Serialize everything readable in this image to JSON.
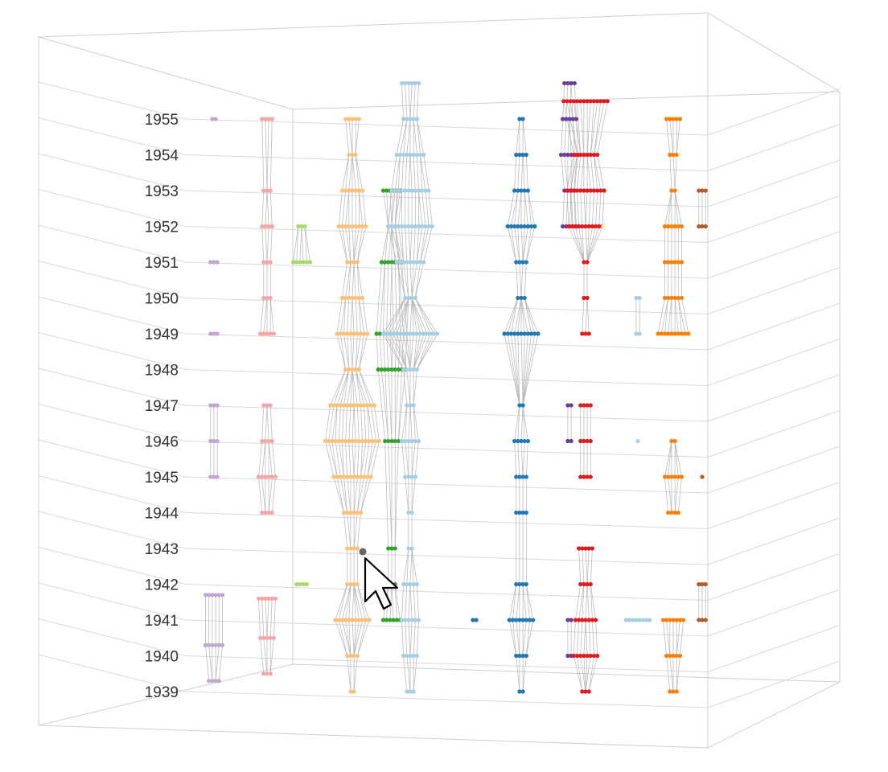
{
  "chart_data": {
    "type": "scatter",
    "title": "",
    "xlabel": "",
    "ylabel": "",
    "y_ticks": [
      "1939",
      "1940",
      "1941",
      "1942",
      "1943",
      "1944",
      "1945",
      "1946",
      "1947",
      "1948",
      "1949",
      "1950",
      "1951",
      "1952",
      "1953",
      "1954",
      "1955"
    ],
    "ylim": [
      1939,
      1955
    ],
    "grid": true,
    "colors": {
      "light_purple": "#c2a5cf",
      "light_pink": "#f4a6a6",
      "light_green": "#a6d96a",
      "light_orange": "#fdc07a",
      "green": "#33a02c",
      "light_blue": "#a6cee3",
      "blue": "#1f78b4",
      "red": "#e31a1c",
      "purple": "#6a3d9a",
      "orange": "#ff7f00",
      "brown": "#b15928",
      "yellow": "#ffff99",
      "hover": "#666666"
    },
    "clusters": [
      {
        "color": "light_purple",
        "years": [
          1955,
          1951,
          1949
        ],
        "sizes": [
          2,
          3,
          3
        ],
        "column": 1,
        "connected": false
      },
      {
        "color": "light_purple",
        "years": [
          1941.7,
          1940.3,
          1939.3
        ],
        "sizes": [
          6,
          6,
          4
        ],
        "column": 1,
        "connected": true
      },
      {
        "color": "light_purple",
        "years": [
          1947,
          1946,
          1945
        ],
        "sizes": [
          3,
          3,
          3
        ],
        "column": 1,
        "connected": true
      },
      {
        "color": "light_pink",
        "years": [
          1955,
          1953,
          1952,
          1951,
          1950,
          1949
        ],
        "sizes": [
          4,
          3,
          4,
          3,
          3,
          5
        ],
        "column": 2,
        "connected": true
      },
      {
        "color": "light_pink",
        "years": [
          1947,
          1946,
          1945,
          1944
        ],
        "sizes": [
          3,
          4,
          6,
          4
        ],
        "column": 2,
        "connected": true
      },
      {
        "color": "light_pink",
        "years": [
          1941.6,
          1940.5,
          1939.5
        ],
        "sizes": [
          6,
          5,
          3
        ],
        "column": 2,
        "connected": true
      },
      {
        "color": "light_green",
        "years": [
          1952,
          1951
        ],
        "sizes": [
          3,
          6
        ],
        "column": 3,
        "connected": true
      },
      {
        "color": "light_green",
        "years": [
          1942
        ],
        "sizes": [
          4
        ],
        "column": 3,
        "connected": false
      },
      {
        "color": "light_orange",
        "years": [
          1955,
          1954,
          1953,
          1952,
          1951,
          1950,
          1949,
          1948,
          1947,
          1946,
          1945,
          1944,
          1943,
          1942,
          1941,
          1940,
          1939
        ],
        "sizes": [
          5,
          3,
          7,
          9,
          4,
          7,
          10,
          5,
          14,
          17,
          12,
          6,
          4,
          4,
          11,
          4,
          2
        ],
        "column": 4,
        "connected": true
      },
      {
        "color": "green",
        "years": [
          1953,
          1952,
          1951,
          1949,
          1948,
          1946,
          1943,
          1942,
          1941
        ],
        "sizes": [
          6,
          3,
          7,
          10,
          9,
          5,
          3,
          3,
          6
        ],
        "column": 5,
        "connected": true
      },
      {
        "color": "light_blue",
        "years": [
          1956,
          1955,
          1954,
          1953,
          1952,
          1951,
          1950,
          1949,
          1948,
          1947,
          1946,
          1945,
          1944,
          1943,
          1942,
          1941,
          1940,
          1939
        ],
        "sizes": [
          6,
          5,
          9,
          12,
          14,
          9,
          4,
          17,
          5,
          3,
          6,
          4,
          2,
          2,
          5,
          6,
          5,
          3
        ],
        "column": 6,
        "connected": true
      },
      {
        "color": "blue",
        "years": [
          1955,
          1954,
          1953,
          1952,
          1951,
          1950,
          1949,
          1947,
          1946,
          1945,
          1944,
          1942,
          1941,
          1940,
          1939
        ],
        "sizes": [
          2,
          4,
          5,
          9,
          4,
          3,
          11,
          2,
          5,
          4,
          4,
          4,
          8,
          4,
          2
        ],
        "column": 7,
        "connected": true
      },
      {
        "color": "blue",
        "years": [
          1941
        ],
        "sizes": [
          2
        ],
        "column": 6.5,
        "connected": false
      },
      {
        "color": "purple",
        "years": [
          1956,
          1955,
          1954,
          1953,
          1952
        ],
        "sizes": [
          4,
          5,
          6,
          4,
          5
        ],
        "column": 8,
        "connected": true
      },
      {
        "color": "purple",
        "years": [
          1947,
          1946
        ],
        "sizes": [
          2,
          2
        ],
        "column": 8,
        "connected": true
      },
      {
        "color": "purple",
        "years": [
          1941,
          1940
        ],
        "sizes": [
          2,
          2
        ],
        "column": 8,
        "connected": true
      },
      {
        "color": "red",
        "years": [
          1955.5,
          1954,
          1953,
          1952,
          1951,
          1950,
          1949
        ],
        "sizes": [
          14,
          8,
          12,
          11,
          2,
          2,
          3
        ],
        "column": 8.5,
        "connected": true
      },
      {
        "color": "red",
        "years": [
          1947,
          1946,
          1945
        ],
        "sizes": [
          4,
          4,
          4
        ],
        "column": 8.5,
        "connected": true
      },
      {
        "color": "red",
        "years": [
          1943,
          1942,
          1941,
          1940,
          1939
        ],
        "sizes": [
          5,
          4,
          7,
          8,
          3
        ],
        "column": 8.5,
        "connected": true
      },
      {
        "color": "yellow",
        "years": [
          1952
        ],
        "sizes": [
          1
        ],
        "column": 8.7,
        "connected": false
      },
      {
        "color": "light_blue",
        "years": [
          1950,
          1949
        ],
        "sizes": [
          2,
          2
        ],
        "column": 9,
        "connected": true
      },
      {
        "color": "light_blue",
        "years": [
          1946
        ],
        "sizes": [
          1
        ],
        "column": 9,
        "connected": false
      },
      {
        "color": "light_blue",
        "years": [
          1941
        ],
        "sizes": [
          8
        ],
        "column": 9,
        "connected": false
      },
      {
        "color": "orange",
        "years": [
          1955,
          1954,
          1953,
          1952,
          1951,
          1950,
          1949
        ],
        "sizes": [
          5,
          3,
          2,
          6,
          6,
          6,
          10
        ],
        "column": 10,
        "connected": true
      },
      {
        "color": "orange",
        "years": [
          1946,
          1945,
          1944
        ],
        "sizes": [
          2,
          6,
          4
        ],
        "column": 10,
        "connected": true
      },
      {
        "color": "orange",
        "years": [
          1941,
          1940,
          1939
        ],
        "sizes": [
          7,
          5,
          3
        ],
        "column": 10,
        "connected": true
      },
      {
        "color": "brown",
        "years": [
          1953,
          1952
        ],
        "sizes": [
          3,
          3
        ],
        "column": 11,
        "connected": true
      },
      {
        "color": "brown",
        "years": [
          1945
        ],
        "sizes": [
          1
        ],
        "column": 11,
        "connected": false
      },
      {
        "color": "brown",
        "years": [
          1942,
          1941
        ],
        "sizes": [
          3,
          3
        ],
        "column": 11,
        "connected": true
      }
    ],
    "hover_point": {
      "year": 1943,
      "column": 4.3
    },
    "cursor": "pointer-arrow"
  }
}
